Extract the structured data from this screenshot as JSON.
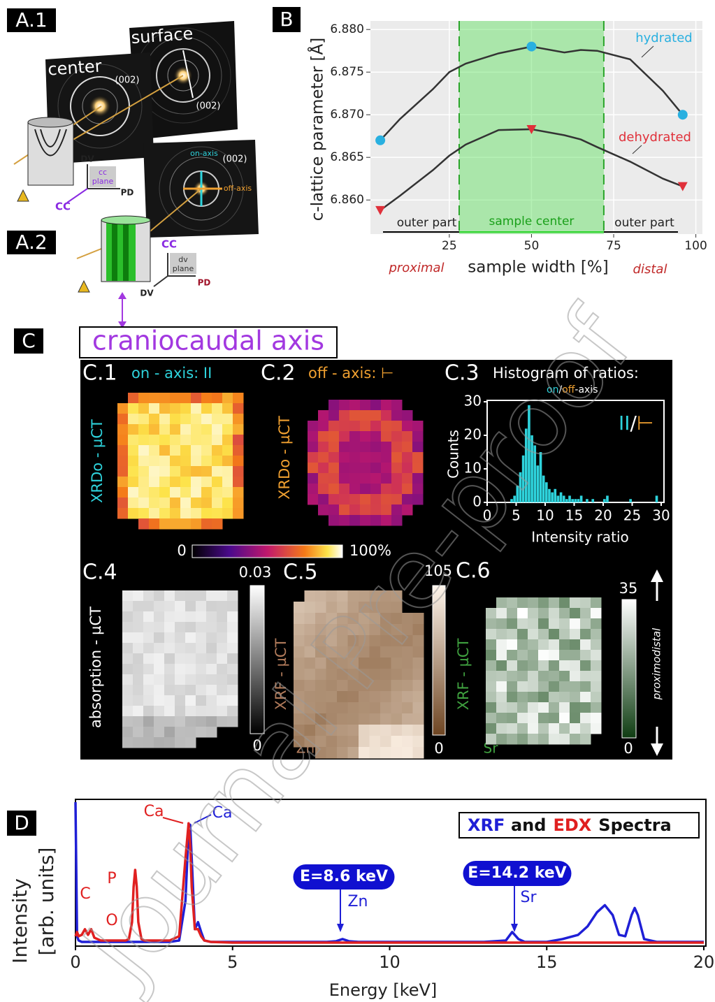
{
  "figure": {
    "a": {
      "label1": "A.1",
      "label2": "A.2",
      "center": "center",
      "surface": "surface",
      "reflex": "(002)",
      "on_axis": "on-axis",
      "off_axis": "off-axis",
      "dv": "DV",
      "pd": "PD",
      "cc": "CC",
      "cc_plane": [
        "cc",
        "plane"
      ],
      "dv_plane": [
        "dv",
        "plane"
      ]
    },
    "c": {
      "label": "C",
      "axis": "craniocaudal axis",
      "c1": "C.1",
      "c1_title": "on - axis: II",
      "c2": "C.2",
      "c2_title": "off - axis: ⊢",
      "c3": "C.3",
      "c3_title": "Histogram of ratios:",
      "c3_subtitle": [
        "on",
        "/",
        "off",
        "-axis"
      ],
      "c3_legend": [
        "II",
        "/",
        "⊢"
      ],
      "xrdo": "XRDo - µCT",
      "cbar1": [
        0,
        {
          "value": 100,
          "label": "100%"
        }
      ],
      "c4": "C.4",
      "cbar4": [
        0,
        0.03
      ],
      "absorption": "absorption - µCT",
      "c5": "C.5",
      "cbar5": [
        0,
        105
      ],
      "xrf": "XRF - µCT",
      "zn": "Zn",
      "c6": "C.6",
      "cbar6": [
        0,
        35
      ],
      "sr": "Sr",
      "proximodistal": "proximodistal"
    },
    "watermark": "Journal Pre-proof"
  },
  "chart_data": [
    {
      "type": "line",
      "label": "B",
      "xlabel": "sample width [%]",
      "ylabel": "c-lattice parameter [Å]",
      "proximal": "proximal",
      "distal": "distal",
      "regions": [
        "outer part",
        "sample center",
        "outer part"
      ],
      "region": [
        28,
        72
      ],
      "x": [
        4,
        10,
        20,
        25,
        30,
        40,
        50,
        60,
        65,
        70,
        80,
        90,
        96
      ],
      "marker_x": [
        4,
        50,
        96
      ],
      "line_color": "#333333",
      "series": [
        {
          "name": "hydrated",
          "color": "#29b0e0",
          "marker": "circle",
          "values": [
            6.867,
            6.8695,
            6.873,
            6.875,
            6.876,
            6.8772,
            6.878,
            6.8773,
            6.8776,
            6.8775,
            6.8765,
            6.8728,
            6.87
          ]
        },
        {
          "name": "dehydrated",
          "color": "#e0303a",
          "marker": "triangle",
          "values": [
            6.8588,
            6.8605,
            6.8635,
            6.8652,
            6.8665,
            6.8682,
            6.8683,
            6.8676,
            6.8671,
            6.8662,
            6.8645,
            6.8625,
            6.8616
          ]
        }
      ],
      "xlim": [
        1,
        102
      ],
      "xticks": [
        25,
        50,
        75,
        100
      ],
      "ylim": [
        6.856,
        6.881
      ],
      "yticks": [
        {
          "value": 6.86,
          "label": "6.860"
        },
        {
          "value": 6.865,
          "label": "6.865"
        },
        {
          "value": 6.87,
          "label": "6.870"
        },
        {
          "value": 6.875,
          "label": "6.875"
        },
        {
          "value": 6.88,
          "label": "6.880"
        }
      ],
      "grid": true
    },
    {
      "type": "histogram",
      "xlabel": "Intensity ratio",
      "ylabel": "Counts",
      "color": "#2ed3dc",
      "bins": [
        4,
        4.5,
        5,
        5.5,
        6,
        6.5,
        7,
        7.5,
        8,
        8.5,
        9,
        9.5,
        10,
        10.5,
        11,
        11.5,
        12,
        12.5,
        13,
        13.5,
        14,
        14.5,
        15,
        15.5,
        16,
        16.5,
        17,
        17.5,
        18,
        18.5,
        19,
        19.5,
        20,
        20.5,
        21,
        21.5,
        22,
        22.5,
        23,
        23.5,
        24,
        24.5,
        25,
        25.5,
        26,
        26.5,
        27,
        27.5,
        28,
        28.5,
        29,
        29.5,
        30
      ],
      "values": [
        1,
        2,
        5,
        9,
        14,
        22,
        29,
        20,
        17,
        11,
        15,
        8,
        6,
        4,
        3,
        4,
        2,
        3,
        2,
        1,
        2,
        1,
        1,
        1,
        2,
        0,
        1,
        0,
        1,
        0,
        0,
        0,
        1,
        2,
        0,
        0,
        0,
        0,
        0,
        0,
        0,
        1,
        0,
        0,
        0,
        0,
        0,
        0,
        0,
        0,
        2,
        0
      ],
      "xlim": [
        0,
        30
      ],
      "xticks": [
        0,
        5,
        10,
        15,
        20,
        25,
        30
      ],
      "ylim": [
        0,
        30
      ],
      "yticks": [
        0,
        10,
        20,
        30
      ]
    },
    {
      "type": "line",
      "label": "D",
      "xlabel": "Energy [keV]",
      "ylabel": [
        "Intensity",
        "[arb. units]"
      ],
      "legend_words": [
        "and",
        "Spectra"
      ],
      "annotations": [
        "Ca",
        "Ca",
        "C",
        "P",
        "O",
        "E=8.6 keV",
        "Zn",
        "E=14.2 keV",
        "Sr"
      ],
      "x": [
        0,
        0.05,
        0.1,
        0.2,
        0.3,
        0.4,
        0.5,
        0.6,
        0.8,
        1.0,
        1.2,
        1.4,
        1.6,
        1.7,
        1.8,
        1.85,
        1.9,
        1.95,
        2.0,
        2.1,
        2.2,
        2.5,
        3.0,
        3.3,
        3.5,
        3.6,
        3.65,
        3.7,
        3.8,
        3.9,
        4.0,
        4.1,
        4.3,
        5,
        6,
        7,
        8,
        8.3,
        8.5,
        8.7,
        9,
        10,
        11,
        12,
        13,
        13.7,
        13.9,
        14.1,
        14.3,
        15,
        15.5,
        16,
        16.3,
        16.6,
        16.85,
        17.1,
        17.3,
        17.5,
        17.7,
        17.8,
        17.9,
        18.1,
        18.5,
        19,
        20
      ],
      "series": [
        {
          "name": "XRF",
          "color": "#1f1fd6",
          "values": [
            1.0,
            0.05,
            0.02,
            0.01,
            0.01,
            0.01,
            0.01,
            0.01,
            0.01,
            0.01,
            0.01,
            0.01,
            0.01,
            0.01,
            0.01,
            0.01,
            0.01,
            0.01,
            0.01,
            0.01,
            0.01,
            0.01,
            0.01,
            0.02,
            0.3,
            0.8,
            0.84,
            0.6,
            0.1,
            0.15,
            0.08,
            0.02,
            0.01,
            0.01,
            0.01,
            0.01,
            0.01,
            0.015,
            0.03,
            0.015,
            0.01,
            0.01,
            0.01,
            0.01,
            0.01,
            0.02,
            0.08,
            0.03,
            0.01,
            0.01,
            0.03,
            0.06,
            0.12,
            0.22,
            0.27,
            0.2,
            0.06,
            0.05,
            0.2,
            0.25,
            0.2,
            0.03,
            0.01,
            0.01,
            0.01
          ]
        },
        {
          "name": "EDX",
          "color": "#e02020",
          "values": [
            0.05,
            0.08,
            0.05,
            0.06,
            0.1,
            0.06,
            0.1,
            0.04,
            0.02,
            0.02,
            0.02,
            0.02,
            0.02,
            0.03,
            0.15,
            0.4,
            0.52,
            0.4,
            0.15,
            0.03,
            0.02,
            0.02,
            0.02,
            0.05,
            0.6,
            0.85,
            0.7,
            0.4,
            0.1,
            0.1,
            0.05,
            0.02,
            0.01,
            0.005,
            0.005,
            0.005,
            0.005,
            0.005,
            0.005,
            0.005,
            0.005,
            0.005,
            0.005,
            0.005,
            0.005,
            0.005,
            0.005,
            0.005,
            0.005,
            0.005,
            0.005,
            0.005,
            0.005,
            0.005,
            0.005,
            0.005,
            0.005,
            0.005,
            0.005,
            0.005,
            0.005,
            0.005,
            0.005,
            0.005,
            0.005
          ]
        }
      ],
      "xlim": [
        0,
        20
      ],
      "xticks": [
        0,
        5,
        10,
        15,
        20
      ],
      "ylim": [
        0,
        1
      ]
    }
  ]
}
